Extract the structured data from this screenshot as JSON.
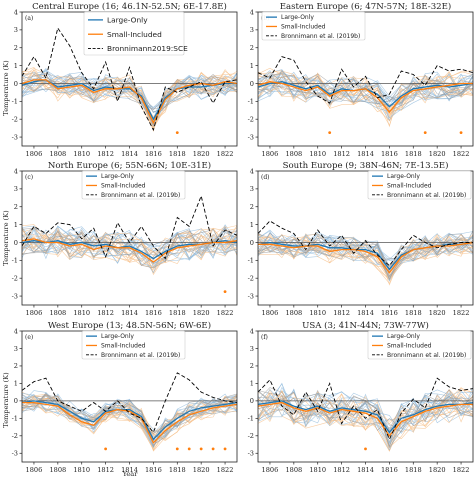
{
  "figure": {
    "ylabel": "Temperature (K)",
    "xlabel": "Year"
  },
  "chart_data": [
    {
      "type": "line",
      "panel_label": "(a)",
      "title": "Central Europe (16; 46.1N-52.5N; 6E-17.8E)",
      "xlim": [
        1805,
        1823
      ],
      "ylim": [
        -3.5,
        4.0
      ],
      "xticks": [
        1806,
        1808,
        1810,
        1812,
        1814,
        1816,
        1818,
        1820,
        1822
      ],
      "yticks": [
        -3,
        -2,
        -1,
        0,
        1,
        2,
        3,
        4
      ],
      "legend": {
        "position": "top-center",
        "entries": [
          "Large-Only",
          "Small-Included",
          "Bronnimann2019:SCE"
        ]
      },
      "colors": {
        "Large-Only": "#1f77b4",
        "Small-Included": "#ff7f0e",
        "Bronnimann2019:SCE": "#000000"
      },
      "x": [
        1805,
        1806,
        1807,
        1808,
        1809,
        1810,
        1811,
        1812,
        1813,
        1814,
        1815,
        1816,
        1817,
        1818,
        1819,
        1820,
        1821,
        1822,
        1823
      ],
      "series": [
        {
          "name": "Large-Only",
          "values": [
            -0.1,
            0.1,
            0.2,
            -0.2,
            -0.1,
            0.0,
            -0.4,
            -0.2,
            -0.3,
            -0.3,
            -0.7,
            -2.0,
            -0.8,
            -0.3,
            -0.2,
            -0.2,
            -0.1,
            0.0,
            0.0
          ]
        },
        {
          "name": "Small-Included",
          "values": [
            0.0,
            0.2,
            0.2,
            -0.3,
            -0.2,
            -0.1,
            -0.5,
            -0.3,
            -0.3,
            -0.2,
            -0.8,
            -2.2,
            -0.9,
            -0.3,
            -0.1,
            0.0,
            -0.1,
            0.1,
            0.0
          ]
        },
        {
          "name": "Bronnimann2019:SCE",
          "values": [
            0.4,
            1.5,
            0.3,
            3.1,
            2.1,
            0.6,
            -0.3,
            1.2,
            -1.0,
            0.9,
            -1.3,
            -2.6,
            -0.2,
            -0.5,
            -0.2,
            0.1,
            -1.1,
            0.1,
            0.2
          ]
        }
      ],
      "ensemble_spread": 0.7,
      "significant_years": [
        1818
      ]
    },
    {
      "type": "line",
      "panel_label": "(b)",
      "title": "Eastern Europe (6; 47N-57N; 18E-32E)",
      "xlim": [
        1805,
        1823
      ],
      "ylim": [
        -3.5,
        4.0
      ],
      "xticks": [
        1806,
        1808,
        1810,
        1812,
        1814,
        1816,
        1818,
        1820,
        1822
      ],
      "yticks": [
        -3,
        -2,
        -1,
        0,
        1,
        2,
        3,
        4
      ],
      "legend": {
        "position": "top-left",
        "entries": [
          "Large-Only",
          "Small-Included",
          "Bronnimann et al. (2019b)"
        ]
      },
      "colors": {
        "Large-Only": "#1f77b4",
        "Small-Included": "#ff7f0e",
        "Bronnimann et al. (2019b)": "#000000"
      },
      "x": [
        1805,
        1806,
        1807,
        1808,
        1809,
        1810,
        1811,
        1812,
        1813,
        1814,
        1815,
        1816,
        1817,
        1818,
        1819,
        1820,
        1821,
        1822,
        1823
      ],
      "series": [
        {
          "name": "Large-Only",
          "values": [
            -0.2,
            0.0,
            0.1,
            -0.1,
            -0.3,
            -0.1,
            -0.6,
            -0.3,
            -0.4,
            -0.3,
            -0.6,
            -1.3,
            -0.7,
            -0.3,
            -0.2,
            -0.1,
            -0.2,
            -0.1,
            0.0
          ]
        },
        {
          "name": "Small-Included",
          "values": [
            -0.1,
            0.1,
            0.0,
            -0.2,
            -0.4,
            -0.2,
            -0.7,
            -0.4,
            -0.4,
            -0.3,
            -0.8,
            -1.6,
            -0.8,
            -0.4,
            -0.3,
            -0.2,
            -0.1,
            0.0,
            0.0
          ]
        },
        {
          "name": "Bronnimann et al. (2019b)",
          "values": [
            0.6,
            0.3,
            1.5,
            1.3,
            0.1,
            -0.7,
            -1.1,
            0.8,
            -0.2,
            0.4,
            -0.8,
            -0.6,
            0.7,
            0.5,
            -0.1,
            1.0,
            0.7,
            0.8,
            0.6
          ]
        }
      ],
      "ensemble_spread": 0.8,
      "significant_years": [
        1811,
        1819,
        1822
      ]
    },
    {
      "type": "line",
      "panel_label": "(c)",
      "title": "North Europe (6; 55N-66N; 10E-31E)",
      "xlim": [
        1805,
        1823
      ],
      "ylim": [
        -3.5,
        4.0
      ],
      "xticks": [
        1806,
        1808,
        1810,
        1812,
        1814,
        1816,
        1818,
        1820,
        1822
      ],
      "yticks": [
        -3,
        -2,
        -1,
        0,
        1,
        2,
        3,
        4
      ],
      "legend": {
        "position": "top-center",
        "entries": [
          "Large-Only",
          "Small-Included",
          "Bronnimann et al. (2019b)"
        ]
      },
      "colors": {
        "Large-Only": "#1f77b4",
        "Small-Included": "#ff7f0e",
        "Bronnimann et al. (2019b)": "#000000"
      },
      "x": [
        1805,
        1806,
        1807,
        1808,
        1809,
        1810,
        1811,
        1812,
        1813,
        1814,
        1815,
        1816,
        1817,
        1818,
        1819,
        1820,
        1821,
        1822,
        1823
      ],
      "series": [
        {
          "name": "Large-Only",
          "values": [
            0.0,
            0.1,
            0.0,
            0.1,
            -0.1,
            0.0,
            -0.2,
            -0.1,
            -0.3,
            -0.2,
            -0.5,
            -0.9,
            -0.5,
            -0.2,
            -0.1,
            -0.1,
            0.0,
            0.1,
            0.0
          ]
        },
        {
          "name": "Small-Included",
          "values": [
            0.1,
            0.2,
            0.0,
            0.0,
            -0.2,
            -0.1,
            -0.4,
            -0.2,
            -0.3,
            -0.3,
            -0.6,
            -1.1,
            -0.6,
            -0.3,
            -0.2,
            -0.1,
            0.0,
            0.0,
            0.1
          ]
        },
        {
          "name": "Bronnimann et al. (2019b)",
          "values": [
            -0.2,
            0.9,
            0.5,
            1.1,
            1.0,
            0.2,
            0.8,
            -0.8,
            1.1,
            0.0,
            0.9,
            -0.2,
            -0.9,
            1.4,
            0.9,
            2.6,
            -0.2,
            0.7,
            0.4
          ]
        }
      ],
      "ensemble_spread": 0.9,
      "significant_years": [
        1822
      ]
    },
    {
      "type": "line",
      "panel_label": "(d)",
      "title": "South Europe (9; 38N-46N; 7E-13.5E)",
      "xlim": [
        1805,
        1823
      ],
      "ylim": [
        -3.5,
        4.0
      ],
      "xticks": [
        1806,
        1808,
        1810,
        1812,
        1814,
        1816,
        1818,
        1820,
        1822
      ],
      "yticks": [
        -3,
        -2,
        -1,
        0,
        1,
        2,
        3,
        4
      ],
      "legend": {
        "position": "top-right",
        "entries": [
          "Large-Only",
          "Small-Included",
          "Bronnimann et al. (2019b)"
        ]
      },
      "colors": {
        "Large-Only": "#1f77b4",
        "Small-Included": "#ff7f0e",
        "Bronnimann et al. (2019b)": "#000000"
      },
      "x": [
        1805,
        1806,
        1807,
        1808,
        1809,
        1810,
        1811,
        1812,
        1813,
        1814,
        1815,
        1816,
        1817,
        1818,
        1819,
        1820,
        1821,
        1822,
        1823
      ],
      "series": [
        {
          "name": "Large-Only",
          "values": [
            -0.1,
            0.0,
            -0.1,
            -0.2,
            -0.2,
            -0.1,
            -0.3,
            -0.3,
            -0.4,
            -0.4,
            -0.6,
            -1.5,
            -0.7,
            -0.4,
            -0.3,
            -0.2,
            -0.1,
            -0.1,
            0.0
          ]
        },
        {
          "name": "Small-Included",
          "values": [
            -0.1,
            -0.1,
            -0.2,
            -0.3,
            -0.2,
            -0.2,
            -0.5,
            -0.4,
            -0.4,
            -0.5,
            -0.8,
            -1.7,
            -0.8,
            -0.4,
            -0.3,
            -0.2,
            -0.2,
            -0.1,
            0.0
          ]
        },
        {
          "name": "Bronnimann et al. (2019b)",
          "values": [
            0.5,
            1.2,
            0.8,
            0.5,
            -0.4,
            0.7,
            -0.2,
            0.4,
            -0.6,
            0.1,
            -0.7,
            -1.3,
            -0.4,
            0.4,
            0.0,
            -0.3,
            -0.1,
            0.0,
            0.0
          ]
        }
      ],
      "ensemble_spread": 0.7,
      "significant_years": []
    },
    {
      "type": "line",
      "panel_label": "(e)",
      "title": "West Europe (13; 48.5N-56N; 6W-6E)",
      "xlim": [
        1805,
        1823
      ],
      "ylim": [
        -3.5,
        4.0
      ],
      "xticks": [
        1806,
        1808,
        1810,
        1812,
        1814,
        1816,
        1818,
        1820,
        1822
      ],
      "yticks": [
        -3,
        -2,
        -1,
        0,
        1,
        2,
        3,
        4
      ],
      "legend": {
        "position": "top-center",
        "entries": [
          "Large-Only",
          "Small-Included",
          "Bronnimann et al. (2019b)"
        ]
      },
      "colors": {
        "Large-Only": "#1f77b4",
        "Small-Included": "#ff7f0e",
        "Bronnimann et al. (2019b)": "#000000"
      },
      "x": [
        1805,
        1806,
        1807,
        1808,
        1809,
        1810,
        1811,
        1812,
        1813,
        1814,
        1815,
        1816,
        1817,
        1818,
        1819,
        1820,
        1821,
        1822,
        1823
      ],
      "series": [
        {
          "name": "Large-Only",
          "values": [
            -0.1,
            0.0,
            -0.1,
            -0.2,
            -0.6,
            -1.0,
            -1.2,
            -0.6,
            -0.5,
            -0.5,
            -0.9,
            -2.2,
            -1.5,
            -1.0,
            -0.6,
            -0.4,
            -0.3,
            -0.2,
            -0.1
          ]
        },
        {
          "name": "Small-Included",
          "values": [
            -0.1,
            -0.1,
            -0.2,
            -0.3,
            -0.8,
            -1.2,
            -1.4,
            -0.7,
            -0.5,
            -0.6,
            -1.0,
            -2.4,
            -1.7,
            -1.2,
            -0.8,
            -0.6,
            -0.4,
            -0.3,
            -0.2
          ]
        },
        {
          "name": "Bronnimann et al. (2019b)",
          "values": [
            0.6,
            1.1,
            1.3,
            0.0,
            -0.3,
            -0.6,
            -0.1,
            -0.6,
            0.0,
            -0.7,
            -1.0,
            -1.8,
            0.0,
            1.6,
            1.2,
            0.5,
            0.2,
            0.0,
            -0.1
          ]
        }
      ],
      "ensemble_spread": 0.6,
      "significant_years": [
        1812,
        1818,
        1819,
        1820,
        1821,
        1822
      ]
    },
    {
      "type": "line",
      "panel_label": "(f)",
      "title": "USA (3; 41N-44N; 73W-77W)",
      "xlim": [
        1805,
        1823
      ],
      "ylim": [
        -3.5,
        4.0
      ],
      "xticks": [
        1806,
        1808,
        1810,
        1812,
        1814,
        1816,
        1818,
        1820,
        1822
      ],
      "yticks": [
        -3,
        -2,
        -1,
        0,
        1,
        2,
        3,
        4
      ],
      "legend": {
        "position": "top-right",
        "entries": [
          "Large-Only",
          "Small-Included",
          "Bronnimann et al. (2019b)"
        ]
      },
      "colors": {
        "Large-Only": "#1f77b4",
        "Small-Included": "#ff7f0e",
        "Bronnimann et al. (2019b)": "#000000"
      },
      "x": [
        1805,
        1806,
        1807,
        1808,
        1809,
        1810,
        1811,
        1812,
        1813,
        1814,
        1815,
        1816,
        1817,
        1818,
        1819,
        1820,
        1821,
        1822,
        1823
      ],
      "series": [
        {
          "name": "Large-Only",
          "values": [
            -0.2,
            -0.1,
            0.0,
            -0.3,
            -0.5,
            -0.3,
            -0.6,
            -0.4,
            -0.5,
            -0.6,
            -0.8,
            -1.8,
            -1.0,
            -0.8,
            -0.5,
            -0.3,
            -0.2,
            -0.2,
            -0.1
          ]
        },
        {
          "name": "Small-Included",
          "values": [
            -0.3,
            -0.2,
            -0.1,
            -0.4,
            -0.6,
            -0.4,
            -0.7,
            -0.5,
            -0.6,
            -0.7,
            -1.0,
            -2.0,
            -1.2,
            -0.9,
            -0.6,
            -0.4,
            -0.3,
            -0.2,
            -0.2
          ]
        },
        {
          "name": "Bronnimann et al. (2019b)",
          "values": [
            0.5,
            1.2,
            -0.3,
            -0.8,
            0.5,
            -0.6,
            1.0,
            -1.3,
            -0.3,
            -1.0,
            -0.5,
            -2.2,
            -0.7,
            0.1,
            -0.4,
            1.3,
            0.8,
            0.6,
            0.7
          ]
        }
      ],
      "ensemble_spread": 1.0,
      "significant_years": [
        1814
      ]
    }
  ]
}
